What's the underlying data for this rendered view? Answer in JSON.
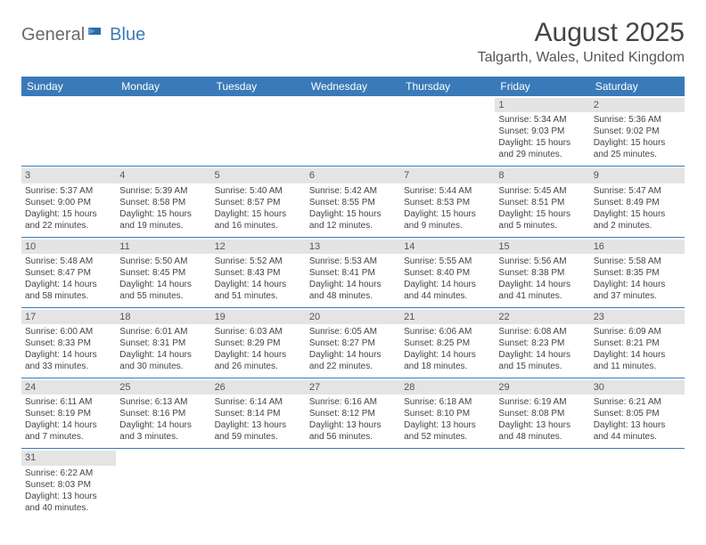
{
  "logo": {
    "general": "General",
    "blue": "Blue"
  },
  "title": "August 2025",
  "location": "Talgarth, Wales, United Kingdom",
  "colors": {
    "header_bg": "#3a7ab8",
    "header_text": "#ffffff",
    "daynum_bg": "#e4e4e4",
    "border": "#3a7ab8",
    "body_text": "#444444"
  },
  "day_headers": [
    "Sunday",
    "Monday",
    "Tuesday",
    "Wednesday",
    "Thursday",
    "Friday",
    "Saturday"
  ],
  "weeks": [
    [
      null,
      null,
      null,
      null,
      null,
      {
        "n": "1",
        "sr": "Sunrise: 5:34 AM",
        "ss": "Sunset: 9:03 PM",
        "d1": "Daylight: 15 hours",
        "d2": "and 29 minutes."
      },
      {
        "n": "2",
        "sr": "Sunrise: 5:36 AM",
        "ss": "Sunset: 9:02 PM",
        "d1": "Daylight: 15 hours",
        "d2": "and 25 minutes."
      }
    ],
    [
      {
        "n": "3",
        "sr": "Sunrise: 5:37 AM",
        "ss": "Sunset: 9:00 PM",
        "d1": "Daylight: 15 hours",
        "d2": "and 22 minutes."
      },
      {
        "n": "4",
        "sr": "Sunrise: 5:39 AM",
        "ss": "Sunset: 8:58 PM",
        "d1": "Daylight: 15 hours",
        "d2": "and 19 minutes."
      },
      {
        "n": "5",
        "sr": "Sunrise: 5:40 AM",
        "ss": "Sunset: 8:57 PM",
        "d1": "Daylight: 15 hours",
        "d2": "and 16 minutes."
      },
      {
        "n": "6",
        "sr": "Sunrise: 5:42 AM",
        "ss": "Sunset: 8:55 PM",
        "d1": "Daylight: 15 hours",
        "d2": "and 12 minutes."
      },
      {
        "n": "7",
        "sr": "Sunrise: 5:44 AM",
        "ss": "Sunset: 8:53 PM",
        "d1": "Daylight: 15 hours",
        "d2": "and 9 minutes."
      },
      {
        "n": "8",
        "sr": "Sunrise: 5:45 AM",
        "ss": "Sunset: 8:51 PM",
        "d1": "Daylight: 15 hours",
        "d2": "and 5 minutes."
      },
      {
        "n": "9",
        "sr": "Sunrise: 5:47 AM",
        "ss": "Sunset: 8:49 PM",
        "d1": "Daylight: 15 hours",
        "d2": "and 2 minutes."
      }
    ],
    [
      {
        "n": "10",
        "sr": "Sunrise: 5:48 AM",
        "ss": "Sunset: 8:47 PM",
        "d1": "Daylight: 14 hours",
        "d2": "and 58 minutes."
      },
      {
        "n": "11",
        "sr": "Sunrise: 5:50 AM",
        "ss": "Sunset: 8:45 PM",
        "d1": "Daylight: 14 hours",
        "d2": "and 55 minutes."
      },
      {
        "n": "12",
        "sr": "Sunrise: 5:52 AM",
        "ss": "Sunset: 8:43 PM",
        "d1": "Daylight: 14 hours",
        "d2": "and 51 minutes."
      },
      {
        "n": "13",
        "sr": "Sunrise: 5:53 AM",
        "ss": "Sunset: 8:41 PM",
        "d1": "Daylight: 14 hours",
        "d2": "and 48 minutes."
      },
      {
        "n": "14",
        "sr": "Sunrise: 5:55 AM",
        "ss": "Sunset: 8:40 PM",
        "d1": "Daylight: 14 hours",
        "d2": "and 44 minutes."
      },
      {
        "n": "15",
        "sr": "Sunrise: 5:56 AM",
        "ss": "Sunset: 8:38 PM",
        "d1": "Daylight: 14 hours",
        "d2": "and 41 minutes."
      },
      {
        "n": "16",
        "sr": "Sunrise: 5:58 AM",
        "ss": "Sunset: 8:35 PM",
        "d1": "Daylight: 14 hours",
        "d2": "and 37 minutes."
      }
    ],
    [
      {
        "n": "17",
        "sr": "Sunrise: 6:00 AM",
        "ss": "Sunset: 8:33 PM",
        "d1": "Daylight: 14 hours",
        "d2": "and 33 minutes."
      },
      {
        "n": "18",
        "sr": "Sunrise: 6:01 AM",
        "ss": "Sunset: 8:31 PM",
        "d1": "Daylight: 14 hours",
        "d2": "and 30 minutes."
      },
      {
        "n": "19",
        "sr": "Sunrise: 6:03 AM",
        "ss": "Sunset: 8:29 PM",
        "d1": "Daylight: 14 hours",
        "d2": "and 26 minutes."
      },
      {
        "n": "20",
        "sr": "Sunrise: 6:05 AM",
        "ss": "Sunset: 8:27 PM",
        "d1": "Daylight: 14 hours",
        "d2": "and 22 minutes."
      },
      {
        "n": "21",
        "sr": "Sunrise: 6:06 AM",
        "ss": "Sunset: 8:25 PM",
        "d1": "Daylight: 14 hours",
        "d2": "and 18 minutes."
      },
      {
        "n": "22",
        "sr": "Sunrise: 6:08 AM",
        "ss": "Sunset: 8:23 PM",
        "d1": "Daylight: 14 hours",
        "d2": "and 15 minutes."
      },
      {
        "n": "23",
        "sr": "Sunrise: 6:09 AM",
        "ss": "Sunset: 8:21 PM",
        "d1": "Daylight: 14 hours",
        "d2": "and 11 minutes."
      }
    ],
    [
      {
        "n": "24",
        "sr": "Sunrise: 6:11 AM",
        "ss": "Sunset: 8:19 PM",
        "d1": "Daylight: 14 hours",
        "d2": "and 7 minutes."
      },
      {
        "n": "25",
        "sr": "Sunrise: 6:13 AM",
        "ss": "Sunset: 8:16 PM",
        "d1": "Daylight: 14 hours",
        "d2": "and 3 minutes."
      },
      {
        "n": "26",
        "sr": "Sunrise: 6:14 AM",
        "ss": "Sunset: 8:14 PM",
        "d1": "Daylight: 13 hours",
        "d2": "and 59 minutes."
      },
      {
        "n": "27",
        "sr": "Sunrise: 6:16 AM",
        "ss": "Sunset: 8:12 PM",
        "d1": "Daylight: 13 hours",
        "d2": "and 56 minutes."
      },
      {
        "n": "28",
        "sr": "Sunrise: 6:18 AM",
        "ss": "Sunset: 8:10 PM",
        "d1": "Daylight: 13 hours",
        "d2": "and 52 minutes."
      },
      {
        "n": "29",
        "sr": "Sunrise: 6:19 AM",
        "ss": "Sunset: 8:08 PM",
        "d1": "Daylight: 13 hours",
        "d2": "and 48 minutes."
      },
      {
        "n": "30",
        "sr": "Sunrise: 6:21 AM",
        "ss": "Sunset: 8:05 PM",
        "d1": "Daylight: 13 hours",
        "d2": "and 44 minutes."
      }
    ],
    [
      {
        "n": "31",
        "sr": "Sunrise: 6:22 AM",
        "ss": "Sunset: 8:03 PM",
        "d1": "Daylight: 13 hours",
        "d2": "and 40 minutes."
      },
      null,
      null,
      null,
      null,
      null,
      null
    ]
  ]
}
